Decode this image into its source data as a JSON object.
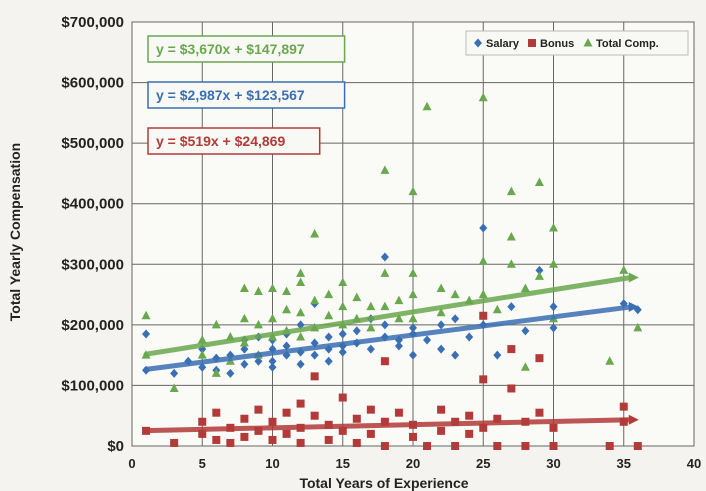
{
  "chart_data": {
    "type": "scatter",
    "xlabel": "Total Years of Experience",
    "ylabel": "Total Yearly Compensation",
    "xlim": [
      0,
      40
    ],
    "ylim": [
      0,
      700000
    ],
    "x_ticks": [
      0,
      5,
      10,
      15,
      20,
      25,
      30,
      35,
      40
    ],
    "x_tick_labels": [
      "0",
      "5",
      "10",
      "15",
      "20",
      "25",
      "30",
      "35",
      "40"
    ],
    "y_ticks": [
      0,
      100000,
      200000,
      300000,
      400000,
      500000,
      600000,
      700000
    ],
    "y_tick_labels": [
      "$0",
      "$100,000",
      "$200,000",
      "$300,000",
      "$400,000",
      "$500,000",
      "$600,000",
      "$700,000"
    ],
    "grid": true,
    "legend_position": "top-right",
    "series": [
      {
        "name": "Salary",
        "color": "#3a6fb3",
        "marker": "diamond",
        "trendline": {
          "slope": 2987,
          "intercept": 123567,
          "label": "y = $2,987x + $123,567"
        },
        "points": [
          [
            1,
            185000
          ],
          [
            1,
            125000
          ],
          [
            3,
            120000
          ],
          [
            4,
            140000
          ],
          [
            5,
            130000
          ],
          [
            5,
            160000
          ],
          [
            6,
            145000
          ],
          [
            6,
            125000
          ],
          [
            7,
            150000
          ],
          [
            7,
            120000
          ],
          [
            8,
            135000
          ],
          [
            8,
            160000
          ],
          [
            8,
            175000
          ],
          [
            9,
            140000
          ],
          [
            9,
            150000
          ],
          [
            9,
            180000
          ],
          [
            10,
            140000
          ],
          [
            10,
            130000
          ],
          [
            10,
            160000
          ],
          [
            10,
            175000
          ],
          [
            11,
            150000
          ],
          [
            11,
            165000
          ],
          [
            11,
            185000
          ],
          [
            12,
            135000
          ],
          [
            12,
            155000
          ],
          [
            12,
            200000
          ],
          [
            13,
            150000
          ],
          [
            13,
            170000
          ],
          [
            13,
            235000
          ],
          [
            14,
            160000
          ],
          [
            14,
            180000
          ],
          [
            14,
            140000
          ],
          [
            15,
            165000
          ],
          [
            15,
            185000
          ],
          [
            15,
            155000
          ],
          [
            16,
            170000
          ],
          [
            16,
            190000
          ],
          [
            17,
            160000
          ],
          [
            17,
            210000
          ],
          [
            18,
            180000
          ],
          [
            18,
            200000
          ],
          [
            18,
            312000
          ],
          [
            19,
            175000
          ],
          [
            19,
            165000
          ],
          [
            20,
            195000
          ],
          [
            20,
            185000
          ],
          [
            20,
            150000
          ],
          [
            21,
            175000
          ],
          [
            22,
            200000
          ],
          [
            22,
            160000
          ],
          [
            23,
            210000
          ],
          [
            23,
            150000
          ],
          [
            24,
            180000
          ],
          [
            25,
            200000
          ],
          [
            25,
            360000
          ],
          [
            26,
            150000
          ],
          [
            27,
            230000
          ],
          [
            28,
            190000
          ],
          [
            29,
            290000
          ],
          [
            30,
            195000
          ],
          [
            30,
            230000
          ],
          [
            35,
            235000
          ],
          [
            36,
            225000
          ]
        ]
      },
      {
        "name": "Bonus",
        "color": "#b23a38",
        "marker": "square",
        "trendline": {
          "slope": 519,
          "intercept": 24869,
          "label": "y = $519x + $24,869"
        },
        "points": [
          [
            1,
            25000
          ],
          [
            3,
            5000
          ],
          [
            5,
            20000
          ],
          [
            5,
            40000
          ],
          [
            6,
            10000
          ],
          [
            6,
            55000
          ],
          [
            7,
            30000
          ],
          [
            7,
            5000
          ],
          [
            8,
            45000
          ],
          [
            8,
            15000
          ],
          [
            9,
            25000
          ],
          [
            9,
            60000
          ],
          [
            10,
            10000
          ],
          [
            10,
            40000
          ],
          [
            11,
            55000
          ],
          [
            11,
            20000
          ],
          [
            12,
            70000
          ],
          [
            12,
            30000
          ],
          [
            12,
            5000
          ],
          [
            13,
            50000
          ],
          [
            13,
            115000
          ],
          [
            14,
            35000
          ],
          [
            14,
            10000
          ],
          [
            15,
            80000
          ],
          [
            15,
            25000
          ],
          [
            16,
            45000
          ],
          [
            16,
            5000
          ],
          [
            17,
            60000
          ],
          [
            17,
            20000
          ],
          [
            18,
            0
          ],
          [
            18,
            140000
          ],
          [
            18,
            40000
          ],
          [
            19,
            55000
          ],
          [
            20,
            15000
          ],
          [
            20,
            35000
          ],
          [
            21,
            0
          ],
          [
            22,
            60000
          ],
          [
            22,
            25000
          ],
          [
            23,
            40000
          ],
          [
            23,
            0
          ],
          [
            24,
            50000
          ],
          [
            24,
            20000
          ],
          [
            25,
            110000
          ],
          [
            25,
            215000
          ],
          [
            25,
            30000
          ],
          [
            26,
            45000
          ],
          [
            26,
            0
          ],
          [
            27,
            160000
          ],
          [
            27,
            95000
          ],
          [
            28,
            40000
          ],
          [
            28,
            0
          ],
          [
            29,
            145000
          ],
          [
            29,
            55000
          ],
          [
            30,
            30000
          ],
          [
            30,
            0
          ],
          [
            34,
            0
          ],
          [
            35,
            65000
          ],
          [
            35,
            40000
          ],
          [
            36,
            0
          ]
        ]
      },
      {
        "name": "Total Comp.",
        "color": "#6aa84f",
        "marker": "triangle",
        "trendline": {
          "slope": 3670,
          "intercept": 147897,
          "label": "y = $3,670x + $147,897"
        },
        "points": [
          [
            1,
            215000
          ],
          [
            1,
            150000
          ],
          [
            3,
            95000
          ],
          [
            5,
            175000
          ],
          [
            5,
            150000
          ],
          [
            6,
            200000
          ],
          [
            6,
            120000
          ],
          [
            7,
            180000
          ],
          [
            7,
            140000
          ],
          [
            8,
            260000
          ],
          [
            8,
            210000
          ],
          [
            8,
            170000
          ],
          [
            9,
            255000
          ],
          [
            9,
            200000
          ],
          [
            9,
            150000
          ],
          [
            10,
            260000
          ],
          [
            10,
            210000
          ],
          [
            10,
            180000
          ],
          [
            11,
            255000
          ],
          [
            11,
            225000
          ],
          [
            11,
            190000
          ],
          [
            12,
            285000
          ],
          [
            12,
            270000
          ],
          [
            12,
            220000
          ],
          [
            12,
            180000
          ],
          [
            13,
            350000
          ],
          [
            13,
            240000
          ],
          [
            13,
            195000
          ],
          [
            14,
            250000
          ],
          [
            14,
            215000
          ],
          [
            15,
            270000
          ],
          [
            15,
            230000
          ],
          [
            15,
            200000
          ],
          [
            16,
            245000
          ],
          [
            16,
            210000
          ],
          [
            17,
            230000
          ],
          [
            17,
            195000
          ],
          [
            18,
            455000
          ],
          [
            18,
            285000
          ],
          [
            18,
            230000
          ],
          [
            19,
            240000
          ],
          [
            19,
            210000
          ],
          [
            20,
            420000
          ],
          [
            20,
            285000
          ],
          [
            20,
            250000
          ],
          [
            20,
            210000
          ],
          [
            21,
            560000
          ],
          [
            22,
            260000
          ],
          [
            22,
            220000
          ],
          [
            23,
            250000
          ],
          [
            24,
            240000
          ],
          [
            25,
            575000
          ],
          [
            25,
            305000
          ],
          [
            25,
            250000
          ],
          [
            26,
            225000
          ],
          [
            27,
            420000
          ],
          [
            27,
            345000
          ],
          [
            27,
            300000
          ],
          [
            28,
            260000
          ],
          [
            28,
            130000
          ],
          [
            29,
            435000
          ],
          [
            29,
            280000
          ],
          [
            30,
            360000
          ],
          [
            30,
            300000
          ],
          [
            30,
            210000
          ],
          [
            34,
            140000
          ],
          [
            35,
            290000
          ],
          [
            36,
            195000
          ]
        ]
      }
    ]
  }
}
